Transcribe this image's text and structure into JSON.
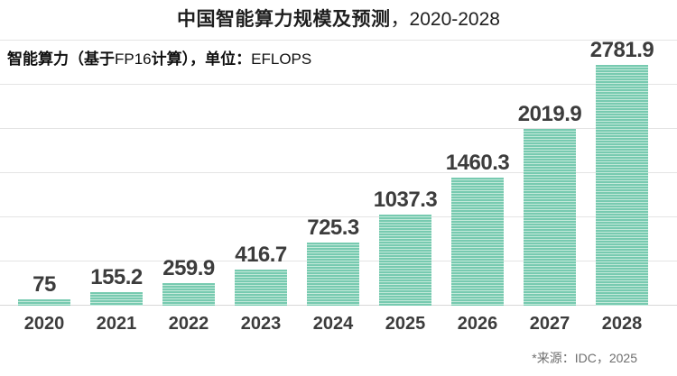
{
  "header": {
    "title_main": "中国智能算力规模及预测",
    "title_suffix": "，2020-2028"
  },
  "subtitle": {
    "segments": [
      {
        "text": "智能算力（基于",
        "bold": true
      },
      {
        "text": "FP16",
        "bold": false
      },
      {
        "text": "计算），单位：",
        "bold": true
      },
      {
        "text": "EFLOPS",
        "bold": false
      }
    ]
  },
  "chart_data": {
    "type": "bar",
    "title": "中国智能算力规模及预测，2020-2028",
    "subtitle": "智能算力（基于FP16计算），单位：EFLOPS",
    "unit": "EFLOPS",
    "categories": [
      "2020",
      "2021",
      "2022",
      "2023",
      "2024",
      "2025",
      "2026",
      "2027",
      "2028"
    ],
    "values": [
      75,
      155.2,
      259.9,
      416.7,
      725.3,
      1037.3,
      1460.3,
      2019.9,
      2781.9
    ],
    "value_labels": [
      "75",
      "155.2",
      "259.9",
      "416.7",
      "725.3",
      "1037.3",
      "1460.3",
      "2019.9",
      "2781.9"
    ],
    "xlabel": "",
    "ylabel": "",
    "ylim": [
      0,
      3030
    ],
    "gridlines": true,
    "legend": false,
    "bar_color": "#77cab0",
    "bar_stripe_color": "#c3e9da",
    "label_color": "#3c3c3c"
  },
  "footer": {
    "source": "*来源：IDC，2025"
  }
}
